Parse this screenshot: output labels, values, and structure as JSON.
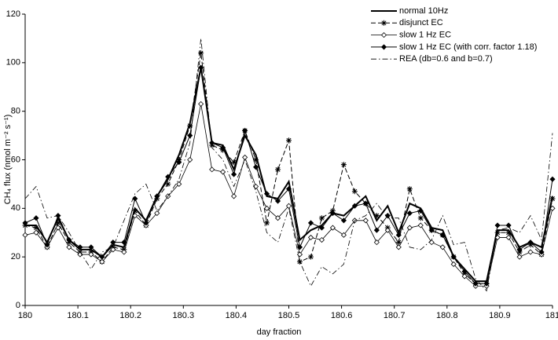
{
  "chart_data": {
    "type": "line",
    "x_label": "day fraction",
    "y_label": "CH₄ flux (nmol m⁻² s⁻¹)",
    "x": [
      180,
      180.0208,
      180.0417,
      180.0625,
      180.0833,
      180.1042,
      180.125,
      180.1458,
      180.1667,
      180.1875,
      180.2083,
      180.2292,
      180.25,
      180.2708,
      180.2917,
      180.3125,
      180.3333,
      180.3542,
      180.375,
      180.3958,
      180.4167,
      180.4375,
      180.4583,
      180.4792,
      180.5,
      180.5208,
      180.5417,
      180.5625,
      180.5833,
      180.6042,
      180.625,
      180.6458,
      180.6667,
      180.6875,
      180.7083,
      180.7292,
      180.75,
      180.7708,
      180.7917,
      180.8125,
      180.8333,
      180.8542,
      180.875,
      180.8958,
      180.9167,
      180.9375,
      180.9583,
      180.9792,
      181
    ],
    "xlim": [
      180,
      181
    ],
    "xticks": [
      180,
      180.1,
      180.2,
      180.3,
      180.4,
      180.5,
      180.6,
      180.7,
      180.8,
      180.9,
      181
    ],
    "ylim": [
      0,
      120
    ],
    "yticks": [
      0,
      20,
      40,
      60,
      80,
      100,
      120
    ],
    "legend": "upper right",
    "series": [
      {
        "name": "normal 10Hz",
        "color": "#000000",
        "width": 2,
        "dash": "solid",
        "marker": "none",
        "values": [
          33,
          33,
          26,
          36,
          27,
          23,
          23,
          20,
          25,
          24,
          40,
          35,
          45,
          52,
          62,
          75,
          98,
          67,
          66,
          56,
          70,
          62,
          45,
          44,
          51,
          27,
          31,
          33,
          38,
          37,
          41,
          45,
          35,
          41,
          30,
          42,
          40,
          32,
          31,
          20,
          15,
          10,
          10,
          31,
          31,
          24,
          26,
          24,
          45
        ]
      },
      {
        "name": "disjunct EC",
        "color": "#000000",
        "width": 1,
        "dash": "dashed",
        "marker": "asterisk",
        "values": [
          33,
          32,
          24,
          34,
          26,
          22,
          22,
          18,
          24,
          23,
          39,
          33,
          44,
          50,
          60,
          74,
          104,
          66,
          64,
          59,
          72,
          60,
          34,
          56,
          68,
          18,
          20,
          36,
          39,
          58,
          47,
          42,
          37,
          32,
          26,
          48,
          36,
          31,
          29,
          20,
          13,
          9,
          9,
          30,
          30,
          22,
          25,
          21,
          44
        ]
      },
      {
        "name": "slow 1 Hz EC",
        "color": "#000000",
        "width": 0.8,
        "dash": "solid",
        "marker": "open-diamond",
        "values": [
          29,
          30,
          24,
          32,
          24,
          21,
          21,
          18,
          23,
          22,
          37,
          33,
          38,
          45,
          50,
          60,
          83,
          56,
          55,
          45,
          61,
          49,
          40,
          36,
          41,
          21,
          28,
          27,
          32,
          29,
          35,
          35,
          26,
          31,
          24,
          32,
          33,
          26,
          24,
          17,
          12,
          8,
          8,
          28,
          28,
          20,
          22,
          21,
          40
        ]
      },
      {
        "name": "slow 1 Hz EC (with corr. factor 1.18)",
        "color": "#000000",
        "width": 1,
        "dash": "solid",
        "marker": "filled-diamond",
        "values": [
          34,
          36,
          25,
          37,
          27,
          24,
          24,
          20,
          26,
          26,
          44,
          34,
          45,
          53,
          59,
          70,
          98,
          67,
          65,
          54,
          72,
          57,
          46,
          43,
          48,
          24,
          34,
          32,
          38,
          35,
          41,
          42,
          31,
          37,
          29,
          38,
          39,
          31,
          29,
          20,
          14,
          9,
          9,
          33,
          33,
          23,
          26,
          22,
          52
        ]
      },
      {
        "name": "REA (db=0.6 and b=0.7)",
        "color": "#000000",
        "width": 0.8,
        "dash": "dashdot",
        "marker": "none",
        "values": [
          44,
          49,
          36,
          37,
          30,
          22,
          15,
          22,
          24,
          35,
          46,
          50,
          39,
          45,
          52,
          67,
          110,
          65,
          60,
          49,
          60,
          47,
          30,
          26,
          40,
          18,
          8,
          16,
          13,
          17,
          35,
          37,
          42,
          36,
          36,
          24,
          23,
          27,
          37,
          25,
          26,
          11,
          6,
          31,
          32,
          30,
          37,
          27,
          71
        ]
      }
    ]
  }
}
